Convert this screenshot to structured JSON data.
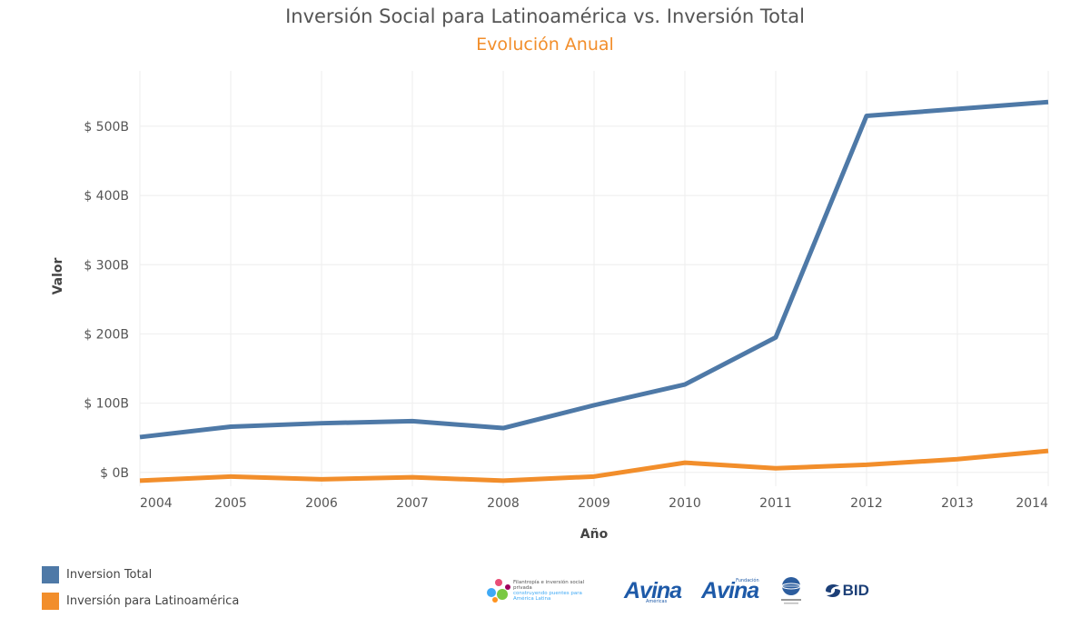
{
  "chart_data": {
    "type": "line",
    "title": "Inversión Social para Latinoamérica vs. Inversión Total",
    "subtitle": "Evolución Anual",
    "xlabel": "Año",
    "ylabel": "Valor",
    "x": [
      "2004",
      "2005",
      "2006",
      "2007",
      "2008",
      "2009",
      "2010",
      "2011",
      "2012",
      "2013",
      "2014"
    ],
    "yticks": [
      0,
      100,
      200,
      300,
      400,
      500
    ],
    "ytick_labels": [
      "$ 0B",
      "$ 100B",
      "$ 200B",
      "$ 300B",
      "$ 400B",
      "$ 500B"
    ],
    "ylim": [
      -20,
      580
    ],
    "grid": true,
    "legend_position": "bottom-left",
    "series": [
      {
        "name": "Inversion Total",
        "color": "#4e79a7",
        "values": [
          51,
          66,
          71,
          74,
          64,
          97,
          127,
          195,
          515,
          525,
          535
        ]
      },
      {
        "name": "Inversión para Latinoamérica",
        "color": "#f28e2b",
        "values": [
          -12,
          -6,
          -10,
          -7,
          -12,
          -6,
          14,
          6,
          11,
          19,
          31
        ]
      }
    ]
  },
  "logos": {
    "filantropia_title": "Filantropía e inversión social privada",
    "filantropia_sub": "construyendo puentes para América Latina",
    "avina_americas": "Avina",
    "avina_americas_sub": "Américas",
    "avina_fundacion": "Avina",
    "avina_fundacion_sub": "Fundación",
    "bid": "BID"
  }
}
